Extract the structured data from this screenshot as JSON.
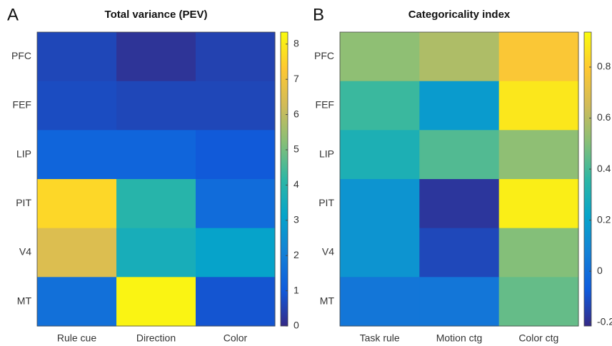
{
  "chart_data": [
    {
      "type": "heatmap",
      "panel_label": "A",
      "title": "Total variance (PEV)",
      "rows": [
        "PFC",
        "FEF",
        "LIP",
        "PIT",
        "V4",
        "MT"
      ],
      "categories": [
        "Rule cue",
        "Direction",
        "Color"
      ],
      "values": [
        [
          0.6,
          0.2,
          0.5
        ],
        [
          0.7,
          0.6,
          0.6
        ],
        [
          1.3,
          1.3,
          1.0
        ],
        [
          7.6,
          4.0,
          1.5
        ],
        [
          6.5,
          3.6,
          3.1
        ],
        [
          1.6,
          8.2,
          0.9
        ]
      ],
      "colormap": "parula",
      "clim": [
        0,
        8.34
      ],
      "cticks": [
        0,
        1,
        2,
        3,
        4,
        5,
        6,
        7,
        8
      ]
    },
    {
      "type": "heatmap",
      "panel_label": "B",
      "title": "Categoricality index",
      "rows": [
        "PFC",
        "FEF",
        "LIP",
        "PIT",
        "V4",
        "MT"
      ],
      "categories": [
        "Task rule",
        "Motion ctg",
        "Color ctg"
      ],
      "values": [
        [
          0.52,
          0.58,
          0.78
        ],
        [
          0.38,
          0.18,
          0.88
        ],
        [
          0.3,
          0.42,
          0.52
        ],
        [
          0.15,
          -0.18,
          0.9
        ],
        [
          0.15,
          -0.13,
          0.5
        ],
        [
          0.03,
          0.03,
          0.45
        ]
      ],
      "colormap": "parula",
      "clim": [
        -0.215,
        0.937
      ],
      "cticks": [
        -0.2,
        0,
        0.2,
        0.4,
        0.6,
        0.8
      ]
    }
  ]
}
